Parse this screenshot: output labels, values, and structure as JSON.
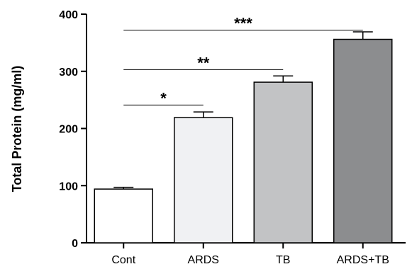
{
  "chart_data": {
    "type": "bar",
    "categories": [
      "Cont",
      "ARDS",
      "TB",
      "ARDS+TB"
    ],
    "values": [
      94,
      219,
      281,
      356
    ],
    "errors": [
      3,
      10,
      11,
      13
    ],
    "bar_colors": [
      "#ffffff",
      "#f0f1f3",
      "#c2c3c5",
      "#8c8d8f"
    ],
    "ylabel": "Total Protein (mg/ml)",
    "xlabel": "",
    "title": "",
    "ylim": [
      0,
      400
    ],
    "yticks": [
      0,
      100,
      200,
      300,
      400
    ],
    "grid": false,
    "significance": [
      {
        "from": "Cont",
        "to": "ARDS",
        "label": "*",
        "y": 241
      },
      {
        "from": "Cont",
        "to": "TB",
        "label": "**",
        "y": 303
      },
      {
        "from": "Cont",
        "to": "ARDS+TB",
        "label": "***",
        "y": 372
      }
    ]
  }
}
